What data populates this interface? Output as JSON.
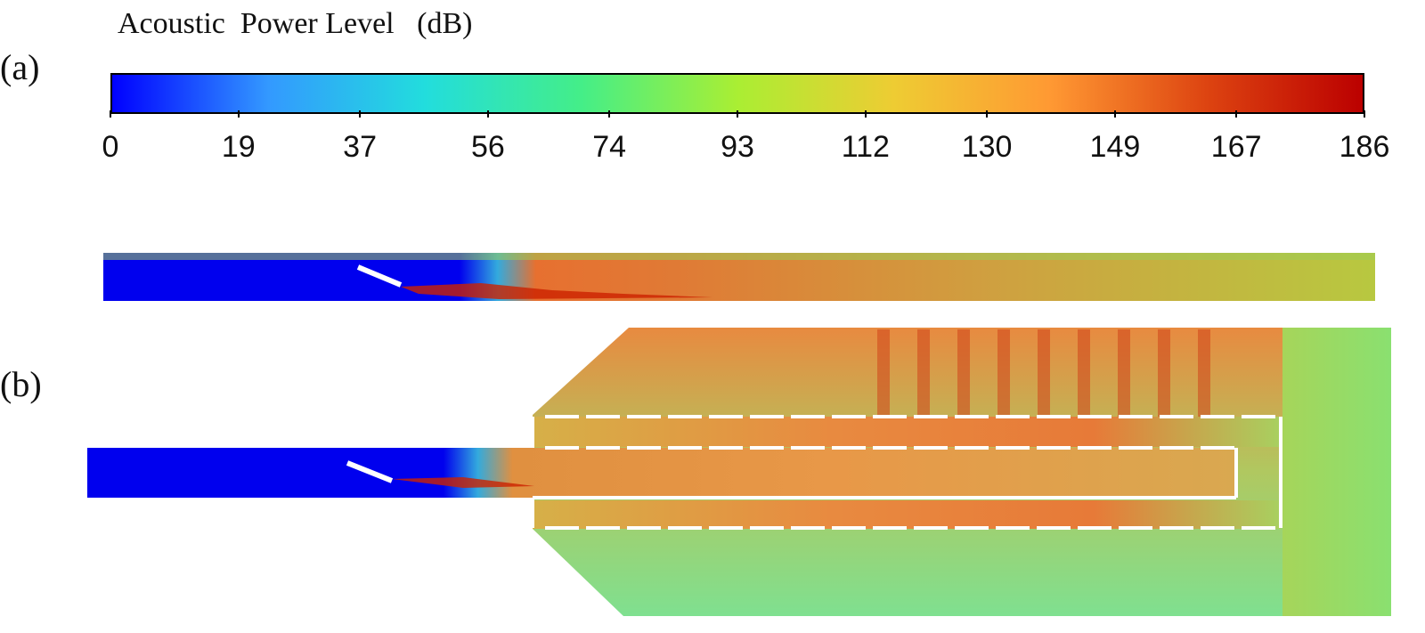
{
  "colorbar": {
    "title": "Acoustic  Power Level   (dB)",
    "min": 0,
    "max": 186,
    "ticks": [
      "0",
      "19",
      "37",
      "56",
      "74",
      "93",
      "112",
      "130",
      "149",
      "167",
      "186"
    ],
    "colors": [
      "#0000ff",
      "#3399ff",
      "#22dddd",
      "#44ee88",
      "#aaee33",
      "#eecc33",
      "#ff9933",
      "#dd4411",
      "#bb0000"
    ]
  },
  "panels": {
    "a": {
      "label": "(a)"
    },
    "b": {
      "label": "(b)"
    }
  }
}
